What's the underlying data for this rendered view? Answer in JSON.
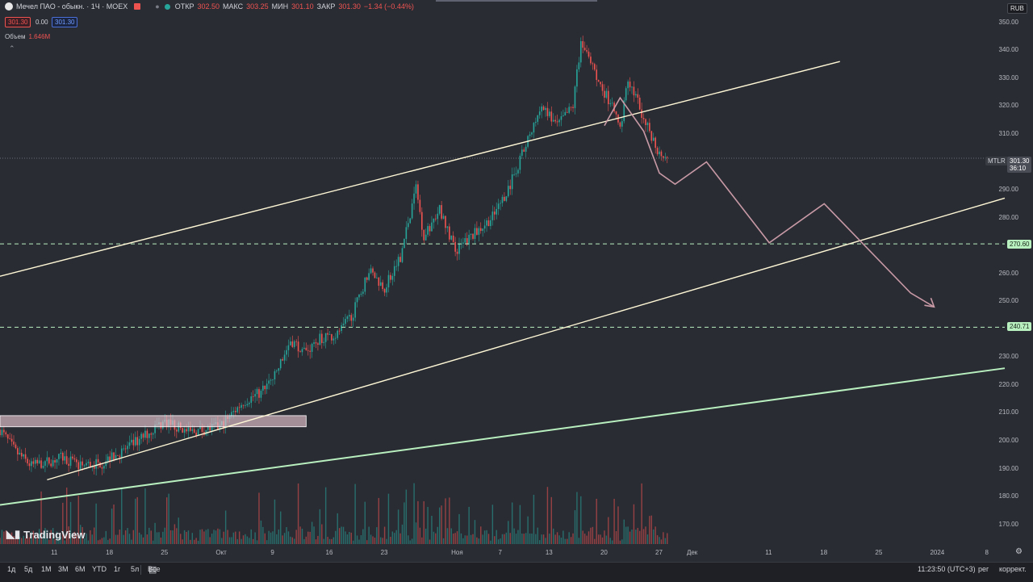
{
  "header": {
    "title": "Мечел ПАО - обыкн. · 1Ч · MOEX",
    "open_label": "ОТКР",
    "open_value": "302.50",
    "high_label": "МАКС",
    "high_value": "303.25",
    "low_label": "МИН",
    "low_value": "301.10",
    "close_label": "ЗАКР",
    "close_value": "301.30",
    "change": "−1.34 (−0.44%)",
    "sell_price": "301.30",
    "spread": "0.00",
    "buy_price": "301.30",
    "volume_label": "Объем",
    "volume_value": "1.646M"
  },
  "currency": "RUB",
  "brand": "TradingView",
  "price_tag": {
    "symbol": "MTLR",
    "price": "301.30",
    "countdown": "36:10"
  },
  "level_tags": [
    "270.60",
    "240.71"
  ],
  "x_ticks": [
    "11",
    "18",
    "25",
    "Окт",
    "9",
    "16",
    "23",
    "Ноя",
    "7",
    "13",
    "20",
    "27",
    "Дек",
    "11",
    "18",
    "25",
    "2024",
    "8"
  ],
  "bottom_bar": {
    "ranges": [
      "1д",
      "5д",
      "1М",
      "3М",
      "6М",
      "YTD",
      "1г",
      "5л",
      "Все"
    ],
    "time": "11:23:50 (UTC+3)",
    "mode": "рег",
    "adjust": "коррект."
  },
  "colors": {
    "up": "#26a69a",
    "down": "#ef5350",
    "channel": "#fff8d6",
    "support": "#b9f0bf",
    "forecast": "#c89aa6",
    "background": "#2a2c34"
  },
  "chart_data": {
    "type": "candlestick",
    "symbol": "MTLR",
    "interval": "1H",
    "y_ticks": [
      350,
      340,
      330,
      320,
      310,
      290,
      280,
      260,
      250,
      230,
      220,
      210,
      200,
      190,
      180,
      170
    ],
    "ylim": [
      167,
      354
    ],
    "last_price": 301.3,
    "path_keypoints": [
      {
        "date": "2023-09-04",
        "price": 204
      },
      {
        "date": "2023-09-06",
        "price": 196
      },
      {
        "date": "2023-09-08",
        "price": 191
      },
      {
        "date": "2023-09-12",
        "price": 194
      },
      {
        "date": "2023-09-14",
        "price": 191
      },
      {
        "date": "2023-09-17",
        "price": 192
      },
      {
        "date": "2023-09-20",
        "price": 197
      },
      {
        "date": "2023-09-23",
        "price": 203
      },
      {
        "date": "2023-09-25",
        "price": 207
      },
      {
        "date": "2023-09-28",
        "price": 203
      },
      {
        "date": "2023-10-02",
        "price": 205
      },
      {
        "date": "2023-10-05",
        "price": 214
      },
      {
        "date": "2023-10-07",
        "price": 217
      },
      {
        "date": "2023-10-09",
        "price": 223
      },
      {
        "date": "2023-10-11",
        "price": 236
      },
      {
        "date": "2023-10-13",
        "price": 232
      },
      {
        "date": "2023-10-15",
        "price": 237
      },
      {
        "date": "2023-10-17",
        "price": 238
      },
      {
        "date": "2023-10-19",
        "price": 246
      },
      {
        "date": "2023-10-21",
        "price": 261
      },
      {
        "date": "2023-10-23",
        "price": 255
      },
      {
        "date": "2023-10-25",
        "price": 266
      },
      {
        "date": "2023-10-27",
        "price": 291
      },
      {
        "date": "2023-10-28",
        "price": 273
      },
      {
        "date": "2023-10-30",
        "price": 283
      },
      {
        "date": "2023-11-01",
        "price": 268
      },
      {
        "date": "2023-11-03",
        "price": 273
      },
      {
        "date": "2023-11-06",
        "price": 281
      },
      {
        "date": "2023-11-08",
        "price": 292
      },
      {
        "date": "2023-11-10",
        "price": 306
      },
      {
        "date": "2023-11-12",
        "price": 320
      },
      {
        "date": "2023-11-14",
        "price": 313
      },
      {
        "date": "2023-11-16",
        "price": 320
      },
      {
        "date": "2023-11-17",
        "price": 343
      },
      {
        "date": "2023-11-19",
        "price": 330
      },
      {
        "date": "2023-11-21",
        "price": 320
      },
      {
        "date": "2023-11-22",
        "price": 311
      },
      {
        "date": "2023-11-23",
        "price": 330
      },
      {
        "date": "2023-11-25",
        "price": 316
      },
      {
        "date": "2023-11-27",
        "price": 303
      }
    ],
    "levels": [
      270.6,
      240.71
    ],
    "lines": [
      {
        "name": "channel-upper",
        "from": {
          "date": "2023-09-04",
          "price": 259
        },
        "to": {
          "date": "2023-12-20",
          "price": 336
        }
      },
      {
        "name": "channel-lower",
        "from": {
          "date": "2023-09-10",
          "price": 186
        },
        "to": {
          "date": "2024-01-10",
          "price": 287
        }
      },
      {
        "name": "support",
        "from": {
          "date": "2023-09-04",
          "price": 177
        },
        "to": {
          "date": "2024-01-10",
          "price": 226
        }
      }
    ],
    "range_box": {
      "from": "2023-09-04",
      "to": "2023-10-13",
      "low": 205,
      "high": 209
    },
    "forecast_path": [
      {
        "date": "2023-11-20",
        "price": 313
      },
      {
        "date": "2023-11-22",
        "price": 323
      },
      {
        "date": "2023-11-25",
        "price": 311
      },
      {
        "date": "2023-11-27",
        "price": 296
      },
      {
        "date": "2023-11-29",
        "price": 292
      },
      {
        "date": "2023-12-03",
        "price": 300
      },
      {
        "date": "2023-12-11",
        "price": 271
      },
      {
        "date": "2023-12-18",
        "price": 285
      },
      {
        "date": "2023-12-29",
        "price": 253
      },
      {
        "date": "2024-01-01",
        "price": 248
      }
    ]
  }
}
